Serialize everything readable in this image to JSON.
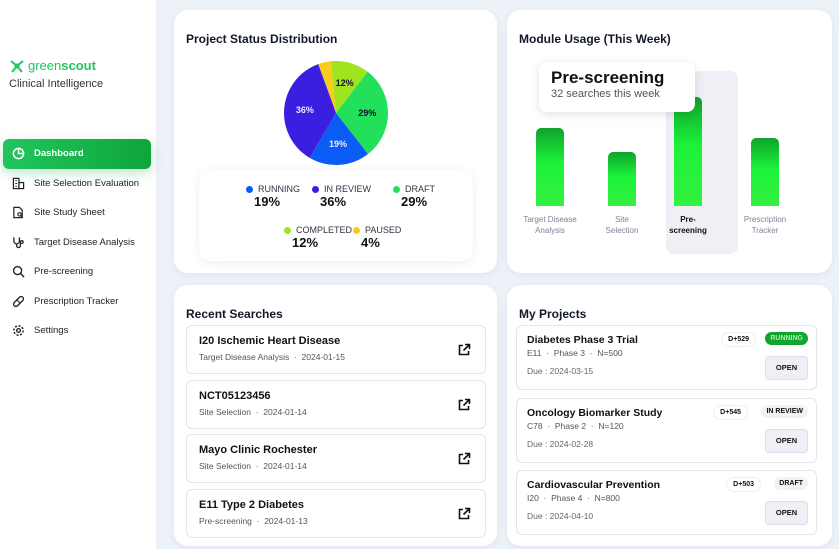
{
  "brand": {
    "name_light": "green",
    "name_bold": "scout",
    "tagline": "Clinical Intelligence"
  },
  "nav": [
    {
      "label": "Dashboard",
      "icon": "pie-chart-icon",
      "active": true
    },
    {
      "label": "Site Selection Evaluation",
      "icon": "building-icon"
    },
    {
      "label": "Site Study Sheet",
      "icon": "document-search-icon"
    },
    {
      "label": "Target Disease Analysis",
      "icon": "stethoscope-icon"
    },
    {
      "label": "Pre-screening",
      "icon": "search-icon"
    },
    {
      "label": "Prescription Tracker",
      "icon": "pill-icon"
    },
    {
      "label": "Settings",
      "icon": "gear-icon"
    }
  ],
  "status_card": {
    "title": "Project Status Distribution"
  },
  "usage_card": {
    "title": "Module Usage (This Week)",
    "tooltip_title": "Pre-screening",
    "tooltip_sub": "32 searches this week"
  },
  "chart_data": [
    {
      "type": "pie",
      "title": "Project Status Distribution",
      "slices": [
        {
          "label": "RUNNING",
          "value": 19,
          "display": "19%",
          "color": "#0b5cf5"
        },
        {
          "label": "IN REVIEW",
          "value": 36,
          "display": "36%",
          "color": "#3b1fe0"
        },
        {
          "label": "DRAFT",
          "value": 29,
          "display": "29%",
          "color": "#22e05a"
        },
        {
          "label": "COMPLETED",
          "value": 12,
          "display": "12%",
          "color": "#9ee51f"
        },
        {
          "label": "PAUSED",
          "value": 4,
          "display": "4%",
          "color": "#f8cc1c"
        }
      ]
    },
    {
      "type": "bar",
      "title": "Module Usage (This Week)",
      "categories": [
        "Target Disease Analysis",
        "Site Selection",
        "Pre-screening",
        "Prescription Tracker"
      ],
      "label_lines": [
        [
          "Target Disease",
          "Analysis"
        ],
        [
          "Site",
          "Selection"
        ],
        [
          "Pre-",
          "screening"
        ],
        [
          "Prescription",
          "Tracker"
        ]
      ],
      "values": [
        23,
        16,
        32,
        20
      ],
      "selected": 2,
      "ylim": [
        0,
        36
      ]
    }
  ],
  "recent": {
    "title": "Recent Searches",
    "items": [
      {
        "title": "I20 Ischemic Heart Disease",
        "module": "Target Disease Analysis",
        "date": "2024-01-15"
      },
      {
        "title": "NCT05123456",
        "module": "Site Selection",
        "date": "2024-01-14"
      },
      {
        "title": "Mayo Clinic Rochester",
        "module": "Site Selection",
        "date": "2024-01-14"
      },
      {
        "title": "E11 Type 2 Diabetes",
        "module": "Pre-screening",
        "date": "2024-01-13"
      }
    ]
  },
  "projects": {
    "title": "My Projects",
    "open_label": "OPEN",
    "items": [
      {
        "title": "Diabetes Phase 3 Trial",
        "code": "E11",
        "phase": "Phase 3",
        "n": "N=500",
        "due": "Due : 2024-03-15",
        "dday": "D+529",
        "status": "RUNNING"
      },
      {
        "title": "Oncology Biomarker Study",
        "code": "C78",
        "phase": "Phase 2",
        "n": "N=120",
        "due": "Due : 2024-02-28",
        "dday": "D+545",
        "status": "IN REVIEW"
      },
      {
        "title": "Cardiovascular Prevention",
        "code": "I20",
        "phase": "Phase 4",
        "n": "N=800",
        "due": "Due : 2024-04-10",
        "dday": "D+503",
        "status": "DRAFT"
      }
    ]
  }
}
